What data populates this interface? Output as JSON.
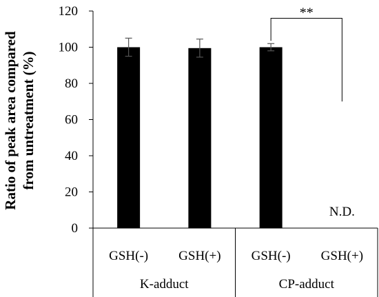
{
  "chart_data": {
    "type": "bar",
    "title": "",
    "ylabel_lines": [
      "Ratio of peak area compared",
      "from untreatment (%)"
    ],
    "xlabel": "",
    "ylim": [
      0,
      120
    ],
    "yticks": [
      0,
      20,
      40,
      60,
      80,
      100,
      120
    ],
    "groups": [
      {
        "name": "K-adduct",
        "categories": [
          "GSH(-)",
          "GSH(+)"
        ]
      },
      {
        "name": "CP-adduct",
        "categories": [
          "GSH(-)",
          "GSH(+)"
        ]
      }
    ],
    "categories": [
      "GSH(-)",
      "GSH(+)",
      "GSH(-)",
      "GSH(+)"
    ],
    "values": [
      100,
      99.5,
      100,
      0
    ],
    "errors": [
      5,
      5,
      2,
      0
    ],
    "annotations": {
      "not_detected": "N.D.",
      "significance": "**"
    },
    "bar_color": "#000000",
    "grid": false,
    "legend": "none"
  }
}
